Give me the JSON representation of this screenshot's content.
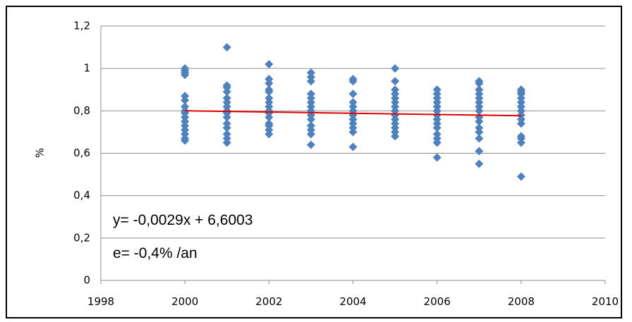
{
  "chart_data": {
    "type": "scatter",
    "ylabel": "%",
    "xlabel": "",
    "xlim": [
      1998,
      2010
    ],
    "ylim": [
      0,
      1.2
    ],
    "x_ticks": [
      "1998",
      "2000",
      "2002",
      "2004",
      "2006",
      "2008",
      "2010"
    ],
    "y_ticks": [
      "0",
      "0,2",
      "0,4",
      "0,6",
      "0,8",
      "1",
      "1,2"
    ],
    "grid": "horizontal",
    "marker_color": "#4F81BD",
    "trend_color": "#E00000",
    "trendline": {
      "slope": -0.0029,
      "intercept": 6.6003,
      "x_range": [
        2000,
        2008
      ]
    },
    "annotations": [
      "y= -0,0029x + 6,6003",
      "e= -0,4% /an"
    ],
    "series": [
      {
        "points": [
          [
            2000,
            0.66
          ],
          [
            2000,
            0.67
          ],
          [
            2000,
            0.69
          ],
          [
            2000,
            0.71
          ],
          [
            2000,
            0.73
          ],
          [
            2000,
            0.75
          ],
          [
            2000,
            0.77
          ],
          [
            2000,
            0.79
          ],
          [
            2000,
            0.8
          ],
          [
            2000,
            0.82
          ],
          [
            2000,
            0.85
          ],
          [
            2000,
            0.87
          ],
          [
            2000,
            0.97
          ],
          [
            2000,
            0.98
          ],
          [
            2000,
            0.99
          ],
          [
            2000,
            1.0
          ],
          [
            2001,
            0.65
          ],
          [
            2001,
            0.67
          ],
          [
            2001,
            0.69
          ],
          [
            2001,
            0.72
          ],
          [
            2001,
            0.74
          ],
          [
            2001,
            0.77
          ],
          [
            2001,
            0.79
          ],
          [
            2001,
            0.8
          ],
          [
            2001,
            0.82
          ],
          [
            2001,
            0.84
          ],
          [
            2001,
            0.86
          ],
          [
            2001,
            0.89
          ],
          [
            2001,
            0.91
          ],
          [
            2001,
            0.92
          ],
          [
            2001,
            1.1
          ],
          [
            2002,
            0.69
          ],
          [
            2002,
            0.71
          ],
          [
            2002,
            0.73
          ],
          [
            2002,
            0.74
          ],
          [
            2002,
            0.77
          ],
          [
            2002,
            0.79
          ],
          [
            2002,
            0.8
          ],
          [
            2002,
            0.82
          ],
          [
            2002,
            0.84
          ],
          [
            2002,
            0.86
          ],
          [
            2002,
            0.89
          ],
          [
            2002,
            0.9
          ],
          [
            2002,
            0.93
          ],
          [
            2002,
            0.95
          ],
          [
            2002,
            1.02
          ],
          [
            2003,
            0.64
          ],
          [
            2003,
            0.69
          ],
          [
            2003,
            0.71
          ],
          [
            2003,
            0.73
          ],
          [
            2003,
            0.76
          ],
          [
            2003,
            0.78
          ],
          [
            2003,
            0.8
          ],
          [
            2003,
            0.82
          ],
          [
            2003,
            0.84
          ],
          [
            2003,
            0.86
          ],
          [
            2003,
            0.88
          ],
          [
            2003,
            0.94
          ],
          [
            2003,
            0.96
          ],
          [
            2003,
            0.98
          ],
          [
            2004,
            0.63
          ],
          [
            2004,
            0.7
          ],
          [
            2004,
            0.72
          ],
          [
            2004,
            0.74
          ],
          [
            2004,
            0.76
          ],
          [
            2004,
            0.78
          ],
          [
            2004,
            0.8
          ],
          [
            2004,
            0.82
          ],
          [
            2004,
            0.84
          ],
          [
            2004,
            0.88
          ],
          [
            2004,
            0.94
          ],
          [
            2004,
            0.95
          ],
          [
            2005,
            0.68
          ],
          [
            2005,
            0.7
          ],
          [
            2005,
            0.72
          ],
          [
            2005,
            0.74
          ],
          [
            2005,
            0.76
          ],
          [
            2005,
            0.78
          ],
          [
            2005,
            0.8
          ],
          [
            2005,
            0.82
          ],
          [
            2005,
            0.84
          ],
          [
            2005,
            0.86
          ],
          [
            2005,
            0.88
          ],
          [
            2005,
            0.9
          ],
          [
            2005,
            0.94
          ],
          [
            2005,
            1.0
          ],
          [
            2006,
            0.58
          ],
          [
            2006,
            0.65
          ],
          [
            2006,
            0.67
          ],
          [
            2006,
            0.69
          ],
          [
            2006,
            0.72
          ],
          [
            2006,
            0.74
          ],
          [
            2006,
            0.76
          ],
          [
            2006,
            0.78
          ],
          [
            2006,
            0.8
          ],
          [
            2006,
            0.82
          ],
          [
            2006,
            0.84
          ],
          [
            2006,
            0.86
          ],
          [
            2006,
            0.88
          ],
          [
            2006,
            0.9
          ],
          [
            2007,
            0.55
          ],
          [
            2007,
            0.61
          ],
          [
            2007,
            0.67
          ],
          [
            2007,
            0.7
          ],
          [
            2007,
            0.72
          ],
          [
            2007,
            0.75
          ],
          [
            2007,
            0.77
          ],
          [
            2007,
            0.8
          ],
          [
            2007,
            0.82
          ],
          [
            2007,
            0.84
          ],
          [
            2007,
            0.86
          ],
          [
            2007,
            0.88
          ],
          [
            2007,
            0.9
          ],
          [
            2007,
            0.93
          ],
          [
            2007,
            0.94
          ],
          [
            2008,
            0.49
          ],
          [
            2008,
            0.65
          ],
          [
            2008,
            0.67
          ],
          [
            2008,
            0.68
          ],
          [
            2008,
            0.74
          ],
          [
            2008,
            0.76
          ],
          [
            2008,
            0.78
          ],
          [
            2008,
            0.8
          ],
          [
            2008,
            0.82
          ],
          [
            2008,
            0.84
          ],
          [
            2008,
            0.86
          ],
          [
            2008,
            0.88
          ],
          [
            2008,
            0.89
          ],
          [
            2008,
            0.9
          ]
        ]
      }
    ]
  }
}
